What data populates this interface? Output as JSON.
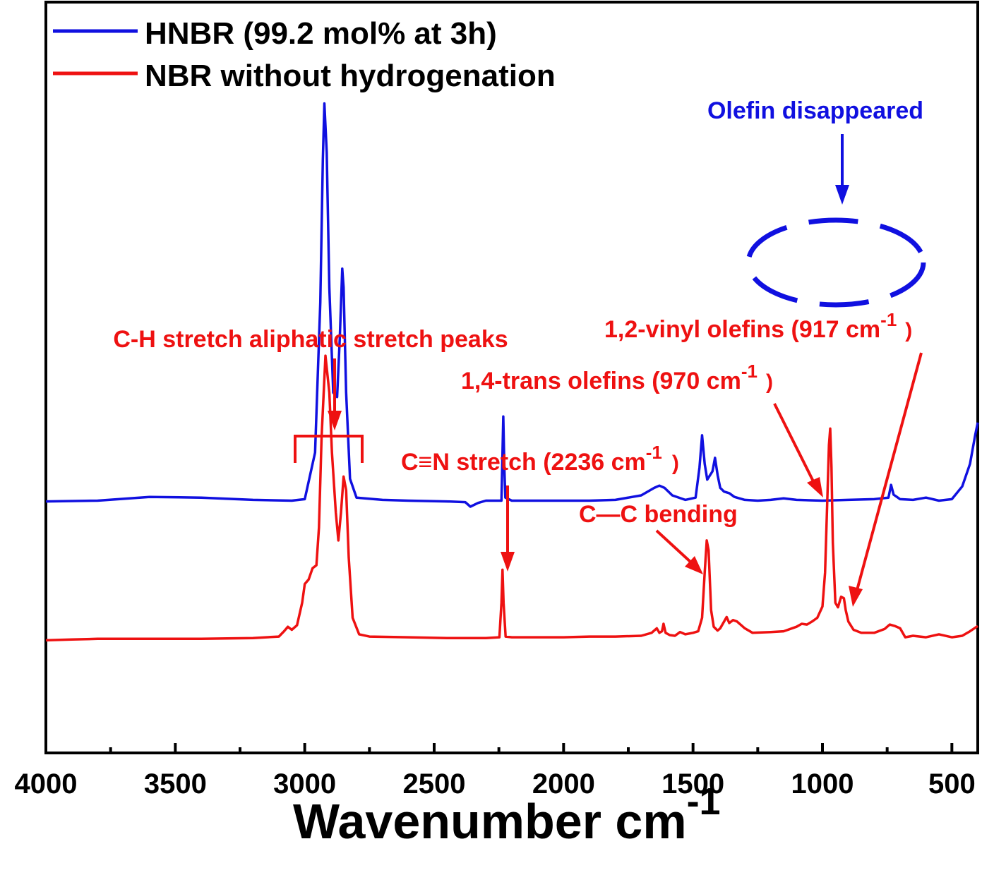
{
  "chart_data": {
    "type": "line",
    "title": "",
    "xlabel": "Wavenumber cm",
    "xlabel_superscript": "-1",
    "ylabel": "",
    "xlim": [
      4000,
      400
    ],
    "x_reversed": true,
    "x_ticks": [
      4000,
      3500,
      3000,
      2500,
      2000,
      1500,
      1000,
      500
    ],
    "y_ticks_shown": false,
    "grid": false,
    "legend": {
      "placement": "top-left",
      "entries": [
        "HNBR (99.2 mol% at 3h)",
        "NBR without hydrogenation"
      ]
    },
    "units_note": "y values are relative transmittance in arbitrary units (0 = plot bottom, 100 = plot top); the chart prints no y scale",
    "series": [
      {
        "name": "HNBR (99.2 mol% at 3h)",
        "color": "#1010e0",
        "points": [
          [
            4000,
            33.5
          ],
          [
            3800,
            33.6
          ],
          [
            3600,
            34.1
          ],
          [
            3400,
            34.0
          ],
          [
            3200,
            33.7
          ],
          [
            3050,
            33.6
          ],
          [
            3000,
            33.8
          ],
          [
            2960,
            40
          ],
          [
            2940,
            60
          ],
          [
            2930,
            79
          ],
          [
            2924,
            86.5
          ],
          [
            2915,
            80
          ],
          [
            2905,
            62
          ],
          [
            2890,
            48
          ],
          [
            2875,
            47.4
          ],
          [
            2865,
            55
          ],
          [
            2855,
            64.5
          ],
          [
            2850,
            62
          ],
          [
            2840,
            48
          ],
          [
            2825,
            36.5
          ],
          [
            2800,
            34
          ],
          [
            2700,
            33.7
          ],
          [
            2600,
            33.6
          ],
          [
            2450,
            33.5
          ],
          [
            2380,
            33.4
          ],
          [
            2360,
            32.8
          ],
          [
            2330,
            33.3
          ],
          [
            2300,
            33.6
          ],
          [
            2240,
            33.6
          ],
          [
            2236,
            40
          ],
          [
            2233,
            44.8
          ],
          [
            2229,
            38
          ],
          [
            2225,
            34
          ],
          [
            2200,
            33.6
          ],
          [
            2100,
            33.6
          ],
          [
            2000,
            33.6
          ],
          [
            1900,
            33.6
          ],
          [
            1800,
            33.7
          ],
          [
            1700,
            34.3
          ],
          [
            1650,
            35.3
          ],
          [
            1630,
            35.6
          ],
          [
            1610,
            35.3
          ],
          [
            1580,
            34.3
          ],
          [
            1530,
            33.7
          ],
          [
            1490,
            34
          ],
          [
            1475,
            38
          ],
          [
            1465,
            42.3
          ],
          [
            1455,
            38.5
          ],
          [
            1445,
            36.4
          ],
          [
            1425,
            37.5
          ],
          [
            1415,
            39.3
          ],
          [
            1405,
            37
          ],
          [
            1395,
            35.3
          ],
          [
            1380,
            34.8
          ],
          [
            1360,
            34.6
          ],
          [
            1340,
            34.1
          ],
          [
            1300,
            33.7
          ],
          [
            1250,
            33.6
          ],
          [
            1200,
            33.7
          ],
          [
            1150,
            33.9
          ],
          [
            1100,
            33.7
          ],
          [
            1000,
            33.6
          ],
          [
            900,
            33.7
          ],
          [
            800,
            33.8
          ],
          [
            745,
            34
          ],
          [
            735,
            35.7
          ],
          [
            725,
            34.4
          ],
          [
            700,
            33.8
          ],
          [
            650,
            33.7
          ],
          [
            600,
            34
          ],
          [
            550,
            33.6
          ],
          [
            500,
            33.8
          ],
          [
            460,
            35.5
          ],
          [
            430,
            38.5
          ],
          [
            410,
            42.3
          ],
          [
            400,
            44
          ]
        ]
      },
      {
        "name": "NBR without hydrogenation",
        "color": "#ee1111",
        "points": [
          [
            4000,
            15.0
          ],
          [
            3900,
            15.1
          ],
          [
            3800,
            15.2
          ],
          [
            3600,
            15.2
          ],
          [
            3400,
            15.2
          ],
          [
            3200,
            15.3
          ],
          [
            3100,
            15.5
          ],
          [
            3080,
            16.2
          ],
          [
            3065,
            16.8
          ],
          [
            3050,
            16.4
          ],
          [
            3030,
            17
          ],
          [
            3010,
            20
          ],
          [
            3000,
            22.5
          ],
          [
            2985,
            23.1
          ],
          [
            2970,
            24.6
          ],
          [
            2955,
            25
          ],
          [
            2945,
            30
          ],
          [
            2935,
            42
          ],
          [
            2920,
            52.9
          ],
          [
            2905,
            48
          ],
          [
            2895,
            40
          ],
          [
            2880,
            32
          ],
          [
            2870,
            28.3
          ],
          [
            2860,
            32
          ],
          [
            2850,
            36.8
          ],
          [
            2840,
            35
          ],
          [
            2830,
            26
          ],
          [
            2815,
            18
          ],
          [
            2790,
            15.8
          ],
          [
            2750,
            15.5
          ],
          [
            2600,
            15.4
          ],
          [
            2450,
            15.3
          ],
          [
            2300,
            15.3
          ],
          [
            2248,
            15.4
          ],
          [
            2240,
            20
          ],
          [
            2236,
            24.4
          ],
          [
            2232,
            20
          ],
          [
            2224,
            15.5
          ],
          [
            2200,
            15.4
          ],
          [
            2100,
            15.4
          ],
          [
            2000,
            15.4
          ],
          [
            1900,
            15.5
          ],
          [
            1800,
            15.5
          ],
          [
            1700,
            15.6
          ],
          [
            1660,
            16
          ],
          [
            1640,
            16.6
          ],
          [
            1630,
            16
          ],
          [
            1620,
            16.2
          ],
          [
            1614,
            17.2
          ],
          [
            1606,
            16
          ],
          [
            1590,
            15.7
          ],
          [
            1570,
            15.6
          ],
          [
            1550,
            16.1
          ],
          [
            1530,
            15.8
          ],
          [
            1500,
            16
          ],
          [
            1480,
            16.2
          ],
          [
            1465,
            18
          ],
          [
            1455,
            24
          ],
          [
            1447,
            28.3
          ],
          [
            1440,
            27
          ],
          [
            1430,
            19
          ],
          [
            1420,
            16.8
          ],
          [
            1405,
            16.3
          ],
          [
            1395,
            16.6
          ],
          [
            1380,
            17.5
          ],
          [
            1370,
            18.1
          ],
          [
            1360,
            17.3
          ],
          [
            1345,
            17.7
          ],
          [
            1330,
            17.5
          ],
          [
            1300,
            16.6
          ],
          [
            1270,
            16
          ],
          [
            1200,
            16.1
          ],
          [
            1150,
            16.2
          ],
          [
            1100,
            16.8
          ],
          [
            1080,
            17.2
          ],
          [
            1060,
            17.1
          ],
          [
            1040,
            17.5
          ],
          [
            1020,
            18
          ],
          [
            1000,
            19.5
          ],
          [
            990,
            24
          ],
          [
            980,
            35
          ],
          [
            975,
            41
          ],
          [
            970,
            43.2
          ],
          [
            965,
            38
          ],
          [
            960,
            28
          ],
          [
            950,
            20
          ],
          [
            940,
            19.4
          ],
          [
            928,
            20.8
          ],
          [
            917,
            20.6
          ],
          [
            910,
            19
          ],
          [
            900,
            17.5
          ],
          [
            880,
            16.4
          ],
          [
            850,
            16
          ],
          [
            800,
            16
          ],
          [
            760,
            16.5
          ],
          [
            740,
            17.1
          ],
          [
            720,
            16.9
          ],
          [
            700,
            16.6
          ],
          [
            680,
            15.4
          ],
          [
            650,
            15.6
          ],
          [
            600,
            15.4
          ],
          [
            550,
            15.8
          ],
          [
            500,
            15.4
          ],
          [
            460,
            15.6
          ],
          [
            430,
            16.2
          ],
          [
            400,
            16.9
          ]
        ]
      }
    ],
    "annotations": {
      "olefin_disappeared": "Olefin disappeared",
      "ch_stretch": "C-H stretch aliphatic stretch peaks",
      "cn_stretch": "C≡N stretch (2236 cm",
      "cc_bending": "C—C bending",
      "trans_olefins": "1,4-trans olefins (970 cm",
      "vinyl_olefins": "1,2-vinyl olefins (917 cm",
      "superscript": "-1",
      "close_paren": ")"
    },
    "annotation_colors": {
      "blue": "#1010e0",
      "red": "#ee1111"
    }
  }
}
